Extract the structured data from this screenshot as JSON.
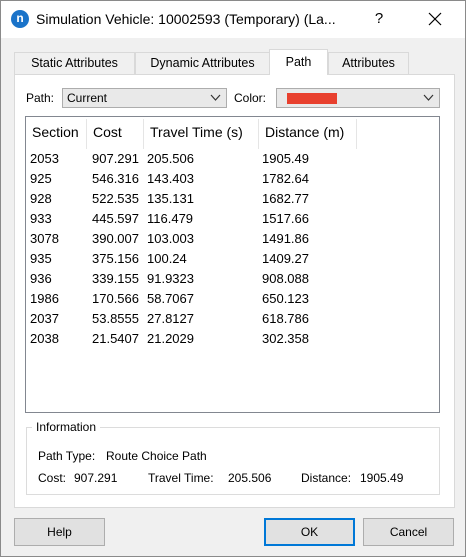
{
  "window": {
    "title": "Simulation Vehicle: 10002593 (Temporary) (La...",
    "help_glyph": "?"
  },
  "tabs": [
    {
      "label": "Static Attributes"
    },
    {
      "label": "Dynamic Attributes"
    },
    {
      "label": "Path"
    },
    {
      "label": "Attributes"
    }
  ],
  "active_tab": "Path",
  "path_selector": {
    "label": "Path:",
    "value": "Current"
  },
  "color_selector": {
    "label": "Color:",
    "value_color": "#e8402e"
  },
  "table": {
    "columns": [
      "Section",
      "Cost",
      "Travel Time (s)",
      "Distance (m)"
    ],
    "rows": [
      [
        "2053",
        "907.291",
        "205.506",
        "1905.49"
      ],
      [
        "925",
        "546.316",
        "143.403",
        "1782.64"
      ],
      [
        "928",
        "522.535",
        "135.131",
        "1682.77"
      ],
      [
        "933",
        "445.597",
        "116.479",
        "1517.66"
      ],
      [
        "3078",
        "390.007",
        "103.003",
        "1491.86"
      ],
      [
        "935",
        "375.156",
        "100.24",
        "1409.27"
      ],
      [
        "936",
        "339.155",
        "91.9323",
        "908.088"
      ],
      [
        "1986",
        "170.566",
        "58.7067",
        "650.123"
      ],
      [
        "2037",
        "53.8555",
        "27.8127",
        "618.786"
      ],
      [
        "2038",
        "21.5407",
        "21.2029",
        "302.358"
      ]
    ]
  },
  "information": {
    "title": "Information",
    "path_type_label": "Path Type:",
    "path_type_value": "Route Choice Path",
    "cost_label": "Cost:",
    "cost_value": "907.291",
    "travel_time_label": "Travel Time:",
    "travel_time_value": "205.506",
    "distance_label": "Distance:",
    "distance_value": "1905.49"
  },
  "buttons": {
    "help": "Help",
    "ok": "OK",
    "cancel": "Cancel"
  },
  "colors": {
    "accent": "#0078d7",
    "app_icon": "#1a73c9"
  }
}
